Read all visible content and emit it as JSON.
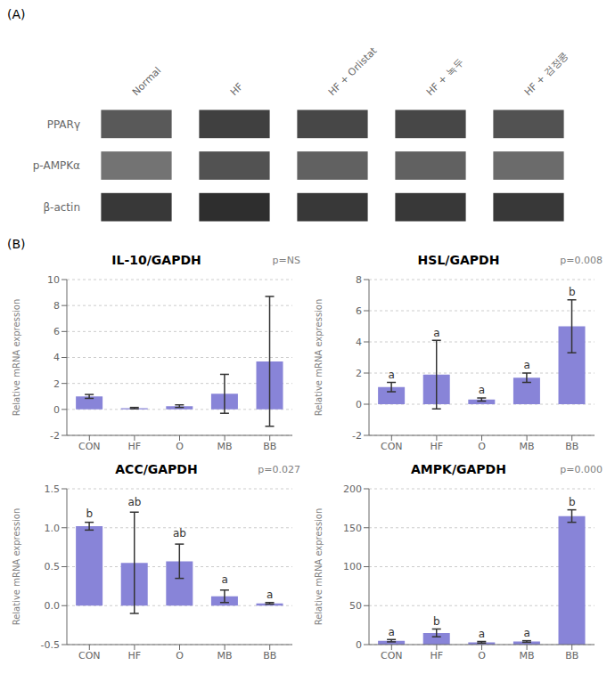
{
  "chart_data": [
    {
      "type": "heatmap",
      "title": "(A)",
      "x": [
        "Normal",
        "HF",
        "HF + Orlistat",
        "HF + 녹두",
        "HF + 검정콩"
      ],
      "y": [
        "PPARγ",
        "p-AMPKα",
        "β-actin"
      ],
      "cells": [
        [
          0.35,
          0.25,
          0.28,
          0.28,
          0.32
        ],
        [
          0.45,
          0.32,
          0.38,
          0.38,
          0.42
        ],
        [
          0.22,
          0.18,
          0.22,
          0.22,
          0.22
        ]
      ]
    },
    {
      "type": "bar",
      "title": "IL-10/GAPDH",
      "pvalue": "p=NS",
      "annotations": [
        "(B)"
      ],
      "categories": [
        "CON",
        "HF",
        "O",
        "MB",
        "BB"
      ],
      "values": [
        1.0,
        0.1,
        0.25,
        1.2,
        3.7
      ],
      "errors": [
        0.15,
        0.05,
        0.1,
        1.5,
        5.0
      ],
      "ylim": [
        -2,
        10
      ],
      "yticks": [
        -2,
        0,
        2,
        4,
        6,
        8,
        10
      ],
      "ylabel": "Relative mRNA expression",
      "color": "#8884d8"
    },
    {
      "type": "bar",
      "title": "HSL/GAPDH",
      "pvalue": "p=0.008",
      "categories": [
        "CON",
        "HF",
        "O",
        "MB",
        "BB"
      ],
      "values": [
        1.1,
        1.9,
        0.3,
        1.7,
        5.0
      ],
      "errors": [
        0.3,
        2.2,
        0.1,
        0.3,
        1.7
      ],
      "ylim": [
        -2,
        8
      ],
      "yticks": [
        -2,
        0,
        2,
        4,
        6,
        8
      ],
      "ylabel": "Relative mRNA expression",
      "color": "#8884d8",
      "letters": [
        "a",
        "a",
        "a",
        "a",
        "b"
      ],
      "letter_y": [
        1.5,
        4.2,
        0.5,
        2.1,
        6.8
      ]
    },
    {
      "type": "bar",
      "title": "ACC/GAPDH",
      "pvalue": "p=0.027",
      "categories": [
        "CON",
        "HF",
        "O",
        "MB",
        "BB"
      ],
      "values": [
        1.02,
        0.55,
        0.57,
        0.12,
        0.03
      ],
      "errors": [
        0.05,
        0.65,
        0.22,
        0.08,
        0.01
      ],
      "ylim": [
        -0.5,
        1.5
      ],
      "yticks": [
        -0.5,
        {
          "value": 0,
          "label": "0.0"
        },
        0.5,
        {
          "value": 1.0,
          "label": "1.0"
        },
        1.5
      ],
      "ylabel": "Relative mRNA expression",
      "color": "#8884d8",
      "letters": [
        "b",
        "ab",
        "ab",
        "a",
        "a"
      ],
      "letter_y": [
        1.1,
        1.25,
        0.85,
        0.25,
        0.06
      ]
    },
    {
      "type": "bar",
      "title": "AMPK/GAPDH",
      "pvalue": "p=0.000",
      "categories": [
        "CON",
        "HF",
        "O",
        "MB",
        "BB"
      ],
      "values": [
        5.0,
        15.0,
        3.0,
        4.0,
        165.0
      ],
      "errors": [
        1.5,
        5.0,
        1.0,
        1.0,
        8.0
      ],
      "ylim": [
        0,
        200
      ],
      "yticks": [
        0,
        50,
        100,
        150,
        200
      ],
      "ylabel": "Relative mRNA expression",
      "color": "#8884d8",
      "letters": [
        "a",
        "b",
        "a",
        "a",
        "b"
      ],
      "letter_y": [
        8,
        22,
        6,
        7,
        175
      ]
    }
  ]
}
